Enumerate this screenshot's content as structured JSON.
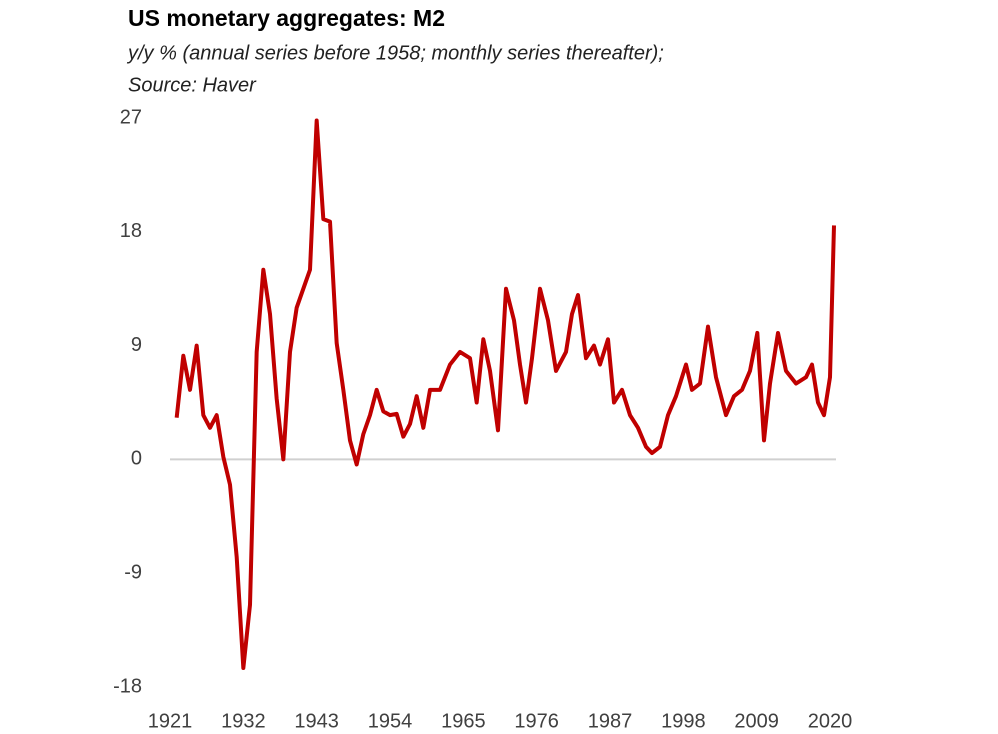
{
  "chart_data": {
    "type": "line",
    "title": "US monetary aggregates: M2",
    "subtitle": "y/y % (annual series before 1958; monthly series thereafter);",
    "source": "Source: Haver",
    "xlim": [
      1921,
      2020
    ],
    "xticks": [
      1921,
      1932,
      1943,
      1954,
      1965,
      1976,
      1987,
      1998,
      2009,
      2020
    ],
    "ylim": [
      -18,
      27
    ],
    "yticks": [
      27,
      18,
      9,
      0,
      -9,
      -18
    ],
    "zero_line": true,
    "series": [
      {
        "name": "M2",
        "color": "#c00000",
        "x": [
          1922,
          1923,
          1924,
          1925,
          1926,
          1927,
          1928,
          1929,
          1930,
          1931,
          1932,
          1933,
          1934,
          1935,
          1936,
          1937,
          1938,
          1939,
          1940,
          1941,
          1942,
          1943,
          1944,
          1945,
          1946,
          1947,
          1948,
          1949,
          1950,
          1951,
          1952,
          1953,
          1954,
          1955,
          1956,
          1957,
          1958,
          1959,
          1960,
          1961.5,
          1963,
          1964.5,
          1966,
          1967,
          1968,
          1969,
          1970.2,
          1971.4,
          1972.6,
          1973.5,
          1974.4,
          1975.3,
          1976.5,
          1977.7,
          1978.9,
          1980.4,
          1981.3,
          1982.2,
          1983.4,
          1984.6,
          1985.5,
          1986.7,
          1987.6,
          1988.8,
          1990,
          1991.2,
          1992.4,
          1993.3,
          1994.5,
          1995.7,
          1996.9,
          1998.4,
          1999.3,
          2000.5,
          2001.7,
          2002.9,
          2004.4,
          2005.6,
          2006.8,
          2008,
          2009.1,
          2010.1,
          2011,
          2012.2,
          2013.4,
          2014.9,
          2016.4,
          2017.3,
          2018.2,
          2019.1,
          2020,
          2020.6
        ],
        "values": [
          3.3,
          8.2,
          5.5,
          9,
          3.5,
          2.5,
          3.5,
          0.2,
          -2,
          -7.7,
          -16.5,
          -11.5,
          8.5,
          15,
          11.5,
          4.8,
          0,
          8.5,
          12,
          13.5,
          15,
          26.8,
          19,
          18.8,
          9.2,
          5.5,
          1.5,
          -0.4,
          2,
          3.5,
          5.5,
          3.8,
          3.5,
          3.6,
          1.8,
          2.8,
          5,
          2.5,
          5.5,
          5.5,
          7.5,
          8.5,
          8,
          4.5,
          9.5,
          7,
          2.3,
          13.5,
          11,
          7.5,
          4.5,
          8,
          13.5,
          11,
          7,
          8.5,
          11.5,
          13,
          8,
          9,
          7.5,
          9.5,
          4.5,
          5.5,
          3.5,
          2.5,
          1,
          0.5,
          1,
          3.5,
          5,
          7.5,
          5.5,
          6,
          10.5,
          6.5,
          3.5,
          5,
          5.5,
          7,
          10,
          1.5,
          6,
          10,
          7,
          6,
          6.5,
          7.5,
          4.5,
          3.5,
          6.5,
          18.5
        ]
      }
    ]
  }
}
